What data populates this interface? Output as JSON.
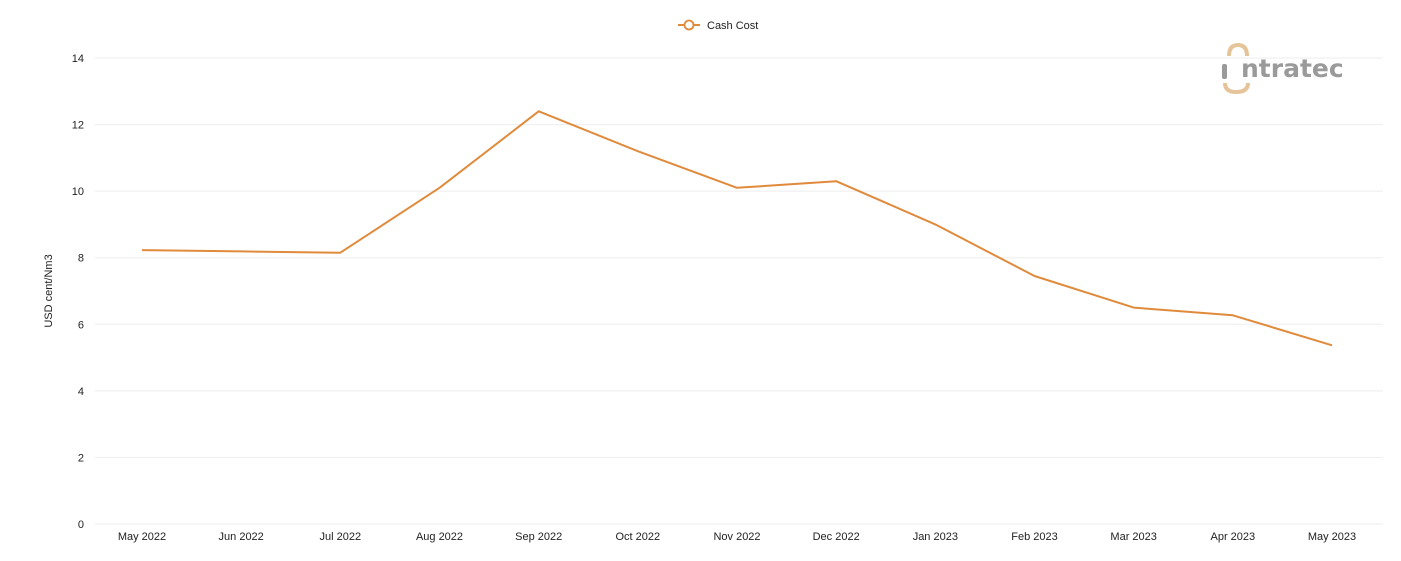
{
  "chart_data": {
    "type": "line",
    "categories": [
      "May 2022",
      "Jun 2022",
      "Jul 2022",
      "Aug 2022",
      "Sep 2022",
      "Oct 2022",
      "Nov 2022",
      "Dec 2022",
      "Jan 2023",
      "Feb 2023",
      "Mar 2023",
      "Apr 2023",
      "May 2023"
    ],
    "series": [
      {
        "name": "Cash Cost",
        "values": [
          8.23,
          8.19,
          8.15,
          10.1,
          12.4,
          11.2,
          10.1,
          10.3,
          9.0,
          7.45,
          6.5,
          6.27,
          5.37
        ],
        "color": "#e08a3c"
      }
    ],
    "ylabel": "USD cent/Nm3",
    "xlabel": "",
    "ylim": [
      0,
      14
    ],
    "yticks": [
      0,
      2,
      4,
      6,
      8,
      10,
      12,
      14
    ],
    "grid": true,
    "legend_position": "top-center",
    "colors": {
      "line": "#e08a3c",
      "grid": "#eeeeee",
      "logo_text": "#9a9a9a",
      "logo_accent": "#e6c49a"
    }
  },
  "logo": {
    "text": "ntratec",
    "icon": "intratec-logo-icon"
  }
}
